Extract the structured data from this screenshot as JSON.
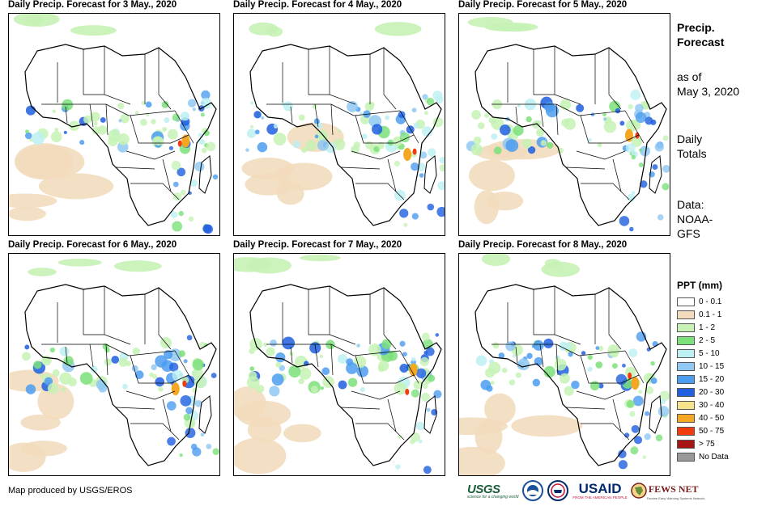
{
  "panels": [
    {
      "title": "Daily Precip. Forecast for 3 May., 2020",
      "day": "3 May 2020"
    },
    {
      "title": "Daily Precip. Forecast for 4 May., 2020",
      "day": "4 May 2020"
    },
    {
      "title": "Daily Precip. Forecast for 5 May., 2020",
      "day": "5 May 2020"
    },
    {
      "title": "Daily Precip. Forecast for 6 May., 2020",
      "day": "6 May 2020"
    },
    {
      "title": "Daily Precip. Forecast for 7 May., 2020",
      "day": "7 May 2020"
    },
    {
      "title": "Daily Precip. Forecast for 8 May., 2020",
      "day": "8 May 2020"
    }
  ],
  "sidebar": {
    "title_line1": "Precip.",
    "title_line2": "Forecast",
    "asof_line1": "as of",
    "asof_line2": "May 3, 2020",
    "totals_line1": "Daily",
    "totals_line2": "Totals",
    "data_line1": "Data:",
    "data_line2": "NOAA-",
    "data_line3": "GFS"
  },
  "legend": {
    "title": "PPT (mm)",
    "items": [
      {
        "label": "0 - 0.1",
        "color": "#ffffff"
      },
      {
        "label": "0.1 - 1",
        "color": "#f2dcbd"
      },
      {
        "label": "1 - 2",
        "color": "#c6f2b5"
      },
      {
        "label": "2 - 5",
        "color": "#7be07a"
      },
      {
        "label": "5 - 10",
        "color": "#bdf0f2"
      },
      {
        "label": "10 - 15",
        "color": "#8fc8f2"
      },
      {
        "label": "15 - 20",
        "color": "#4c9cf0"
      },
      {
        "label": "20 - 30",
        "color": "#1f5fe0"
      },
      {
        "label": "30 - 40",
        "color": "#f7e38c"
      },
      {
        "label": "40 - 50",
        "color": "#f5a623"
      },
      {
        "label": "50 - 75",
        "color": "#f23c0d"
      },
      {
        "label": "> 75",
        "color": "#a81414"
      },
      {
        "label": "No Data",
        "color": "#999999"
      }
    ]
  },
  "footer": {
    "credit": "Map produced by USGS/EROS",
    "logo_usgs": "USGS",
    "logo_usgs_tagline": "science for a changing world",
    "logo_usaid": "USAID",
    "logo_usaid_tagline": "FROM THE AMERICAN PEOPLE",
    "logo_fews": "FEWS NET",
    "logo_fews_tagline": "Famine Early Warning Systems Network"
  }
}
